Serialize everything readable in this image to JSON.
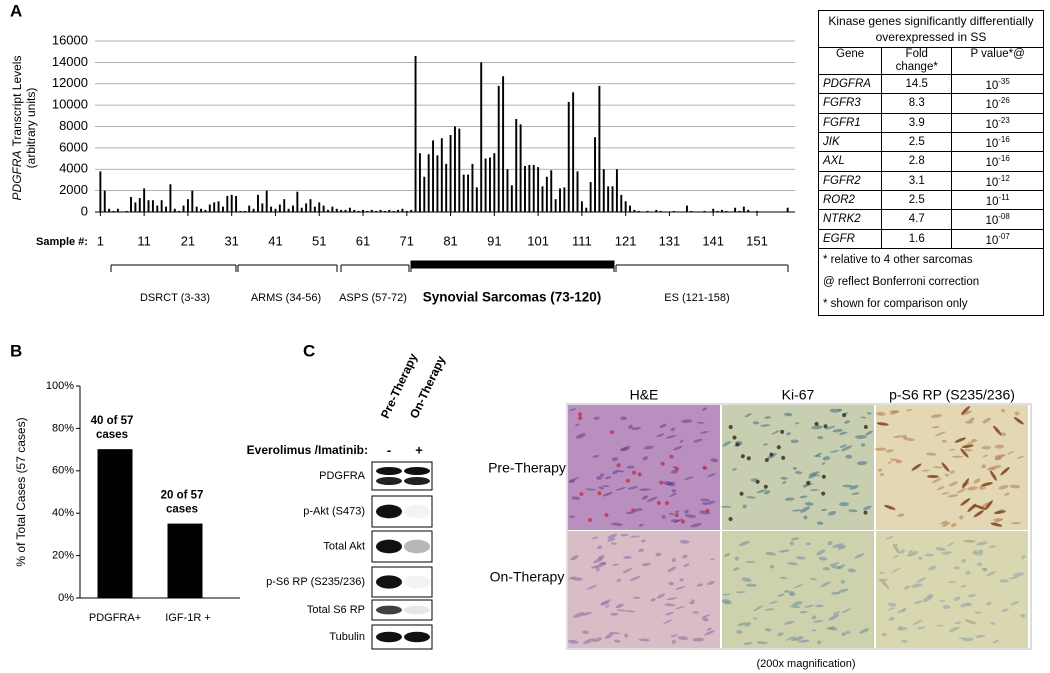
{
  "panels": [
    "A",
    "B",
    "C"
  ],
  "chart_data": [
    {
      "type": "bar",
      "ylabel": {
        "gene": "PDGFRA",
        "text": "Transcript Levels",
        "units": "(arbitrary units)"
      },
      "xlabel": "Sample #:",
      "x": [
        1,
        2,
        3,
        4,
        5,
        6,
        7,
        8,
        9,
        10,
        11,
        12,
        13,
        14,
        15,
        16,
        17,
        18,
        19,
        20,
        21,
        22,
        23,
        24,
        25,
        26,
        27,
        28,
        29,
        30,
        31,
        32,
        33,
        34,
        35,
        36,
        37,
        38,
        39,
        40,
        41,
        42,
        43,
        44,
        45,
        46,
        47,
        48,
        49,
        50,
        51,
        52,
        53,
        54,
        55,
        56,
        57,
        58,
        59,
        60,
        61,
        62,
        63,
        64,
        65,
        66,
        67,
        68,
        69,
        70,
        71,
        72,
        73,
        74,
        75,
        76,
        77,
        78,
        79,
        80,
        81,
        82,
        83,
        84,
        85,
        86,
        87,
        88,
        89,
        90,
        91,
        92,
        93,
        94,
        95,
        96,
        97,
        98,
        99,
        100,
        101,
        102,
        103,
        104,
        105,
        106,
        107,
        108,
        109,
        110,
        111,
        112,
        113,
        114,
        115,
        116,
        117,
        118,
        119,
        120,
        121,
        122,
        123,
        124,
        125,
        126,
        127,
        128,
        129,
        130,
        131,
        132,
        133,
        134,
        135,
        136,
        137,
        138,
        139,
        140,
        141,
        142,
        143,
        144,
        145,
        146,
        147,
        148,
        149,
        150,
        151,
        152,
        153,
        154,
        155,
        156,
        157,
        158
      ],
      "values": [
        3800,
        2000,
        300,
        100,
        300,
        0,
        100,
        1400,
        900,
        1300,
        2200,
        1100,
        1100,
        600,
        1100,
        500,
        2600,
        300,
        100,
        600,
        1200,
        2000,
        500,
        300,
        200,
        700,
        900,
        1000,
        500,
        1500,
        1600,
        1500,
        100,
        100,
        600,
        300,
        1600,
        800,
        2000,
        500,
        300,
        700,
        1200,
        300,
        600,
        1900,
        400,
        800,
        1200,
        500,
        900,
        600,
        200,
        500,
        300,
        200,
        200,
        400,
        200,
        100,
        200,
        100,
        200,
        100,
        200,
        100,
        200,
        100,
        200,
        300,
        100,
        200,
        14600,
        5500,
        3300,
        5400,
        6700,
        5300,
        6900,
        4500,
        7200,
        8000,
        7800,
        3500,
        3500,
        4500,
        2300,
        14000,
        5000,
        5100,
        5500,
        11800,
        12700,
        4000,
        2500,
        8700,
        8200,
        4300,
        4400,
        4400,
        4200,
        2400,
        3300,
        3900,
        1200,
        2200,
        2300,
        10300,
        11200,
        3800,
        1000,
        400,
        2800,
        7000,
        11800,
        4000,
        2400,
        2400,
        4000,
        1600,
        1000,
        600,
        200,
        100,
        0,
        100,
        0,
        200,
        100,
        0,
        0,
        100,
        0,
        0,
        600,
        100,
        0,
        0,
        100,
        0,
        300,
        100,
        200,
        100,
        0,
        400,
        100,
        500,
        200,
        0,
        100,
        0,
        0,
        0,
        0,
        0,
        0,
        400
      ],
      "color": "#000000",
      "xlim": [
        0,
        159
      ],
      "xticks": [
        1,
        11,
        21,
        31,
        41,
        51,
        61,
        71,
        81,
        91,
        101,
        111,
        121,
        131,
        141,
        151
      ],
      "ylim": [
        0,
        16000
      ],
      "yticks": [
        0,
        2000,
        4000,
        6000,
        8000,
        10000,
        12000,
        14000,
        16000
      ],
      "grid": true,
      "groups": [
        "DSRCT (3-33)",
        "ARMS (34-56)",
        "ASPS (57-72)",
        "Synovial Sarcomas (73-120)",
        "ES (121-158)"
      ]
    },
    {
      "type": "bar",
      "ylabel": "% of Total Cases (57 cases)",
      "categories": [
        "PDGFRA+",
        "IGF-1R +"
      ],
      "values": [
        70.2,
        35.1
      ],
      "annotations": [
        [
          "40 of 57",
          "cases"
        ],
        [
          "20 of 57",
          "cases"
        ]
      ],
      "color": "#000000",
      "ylim": [
        0,
        100
      ],
      "yticks": [
        {
          "value": 0,
          "label": "0%"
        },
        {
          "value": 20,
          "label": "20%"
        },
        {
          "value": 40,
          "label": "40%"
        },
        {
          "value": 60,
          "label": "60%"
        },
        {
          "value": 80,
          "label": "80%"
        },
        {
          "value": 100,
          "label": "100%"
        }
      ],
      "grid": false
    }
  ],
  "table": {
    "title": "Kinase genes significantly differentially overexpressed in SS",
    "header": [
      "Gene",
      "Fold change*",
      "P value*@"
    ],
    "rows": [
      [
        "PDGFRA",
        "14.5",
        {
          "base": "10",
          "exp": "-35"
        }
      ],
      [
        "FGFR3",
        "8.3",
        {
          "base": "10",
          "exp": "-26"
        }
      ],
      [
        "FGFR1",
        "3.9",
        {
          "base": "10",
          "exp": "-23"
        }
      ],
      [
        "JIK",
        "2.5",
        {
          "base": "10",
          "exp": "-16"
        }
      ],
      [
        "AXL",
        "2.8",
        {
          "base": "10",
          "exp": "-16"
        }
      ],
      [
        "FGFR2",
        "3.1",
        {
          "base": "10",
          "exp": "-12"
        }
      ],
      [
        "ROR2",
        "2.5",
        {
          "base": "10",
          "exp": "-11"
        }
      ],
      [
        "NTRK2",
        "4.7",
        {
          "base": "10",
          "exp": "-08"
        }
      ],
      [
        "EGFR",
        "1.6",
        {
          "base": "10",
          "exp": "-07"
        }
      ]
    ],
    "notes": [
      "* relative to 4 other sarcomas",
      "@ reflect Bonferroni correction",
      "* shown for comparison only"
    ]
  },
  "blot": {
    "lanes": [
      "Pre-Therapy",
      "On-Therapy"
    ],
    "treatment": "Everolimus /Imatinib:",
    "signs": [
      "-",
      "+"
    ],
    "rows": [
      "PDGFRA",
      "p-Akt (S473)",
      "Total Akt",
      "p-S6 RP (S235/236)",
      "Total S6 RP",
      "Tubulin"
    ]
  },
  "histology": {
    "columns": [
      "H&E",
      "Ki-67",
      "p-S6 RP (S235/236)"
    ],
    "rows": [
      "Pre-Therapy",
      "On-Therapy"
    ],
    "caption": "(200x magnification)"
  }
}
